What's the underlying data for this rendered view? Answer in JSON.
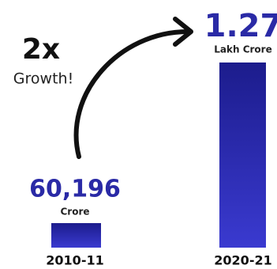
{
  "headline": {
    "multiplier": "2x",
    "caption": "Growth!"
  },
  "items": [
    {
      "value": "60,196",
      "unit": "Crore",
      "period": "2010-11"
    },
    {
      "value": "1.27",
      "unit": "Lakh Crore",
      "period": "2020-21"
    }
  ]
}
